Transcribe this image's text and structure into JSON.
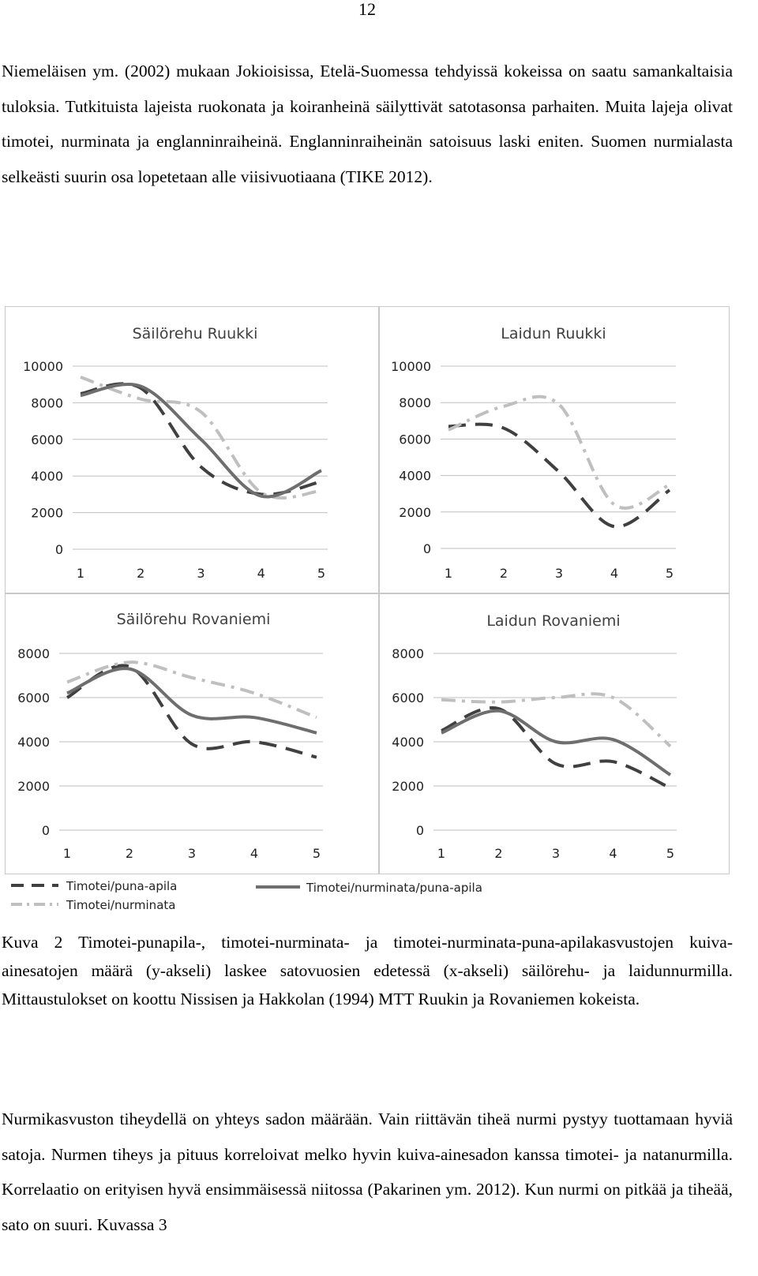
{
  "page_number": "12",
  "paragraph1": "Niemeläisen ym. (2002) mukaan Jokioisissa, Etelä-Suomessa tehdyissä kokeissa on saatu samankaltaisia tuloksia. Tutkituista lajeista ruokonata ja koiranheinä säilyttivät satotasonsa parhaiten. Muita lajeja olivat timotei, nurminata ja englanninraiheinä. Englanninraiheinän satoisuus laski eniten. Suomen nurmialasta selkeästi suurin osa lopetetaan alle viisivuotiaana (TIKE 2012).",
  "caption": "Kuva 2 Timotei-punapila-, timotei-nurminata- ja timotei-nurminata-puna-apilakasvustojen kuiva-ainesatojen määrä (y-akseli) laskee satovuosien edetessä (x-akseli) säilörehu- ja laidunnurmilla. Mittaustulokset on koottu Nissisen ja Hakkolan (1994) MTT Ruukin ja Rovaniemen kokeista.",
  "paragraph2": "Nurmikasvuston tiheydellä on yhteys sadon määrään. Vain riittävän tiheä nurmi pystyy tuottamaan hyviä satoja. Nurmen tiheys ja pituus korreloivat melko hyvin kuiva-ainesadon kanssa timotei- ja natanurmilla. Korrelaatio on erityisen hyvä ensimmäisessä niitossa (Pakarinen ym. 2012). Kun nurmi on pitkää ja tiheää, sato on suuri. Kuvassa 3",
  "legend": {
    "tpa": "Timotei/puna-apila",
    "tn": "Timotei/nurminata",
    "tnpa": "Timotei/nurminata/puna-apila"
  },
  "chart_data": [
    {
      "type": "line",
      "title": "Säilörehu Ruukki",
      "x": [
        1,
        2,
        3,
        4,
        5
      ],
      "ylim": [
        0,
        10000
      ],
      "yticks": [
        0,
        2000,
        4000,
        6000,
        8000,
        10000
      ],
      "series": [
        {
          "name": "Timotei/puna-apila",
          "values": [
            8500,
            8800,
            4500,
            3000,
            3700
          ],
          "style": "dashed",
          "color": "#404040"
        },
        {
          "name": "Timotei/nurminata",
          "values": [
            9400,
            8200,
            7500,
            3100,
            3200
          ],
          "style": "dashdot",
          "color": "#bfbfbf"
        },
        {
          "name": "Timotei/nurminata/puna-apila",
          "values": [
            8400,
            8900,
            6000,
            2900,
            4300
          ],
          "style": "solid",
          "color": "#6e6e6e"
        }
      ]
    },
    {
      "type": "line",
      "title": "Laidun Ruukki",
      "x": [
        1,
        2,
        3,
        4,
        5
      ],
      "ylim": [
        0,
        10000
      ],
      "yticks": [
        0,
        2000,
        4000,
        6000,
        8000,
        10000
      ],
      "series": [
        {
          "name": "Timotei/puna-apila",
          "values": [
            6700,
            6600,
            4200,
            1200,
            3200
          ],
          "style": "dashed",
          "color": "#404040"
        },
        {
          "name": "Timotei/nurminata",
          "values": [
            6500,
            7800,
            7900,
            2400,
            3500
          ],
          "style": "dashdot",
          "color": "#bfbfbf"
        },
        {
          "name": "Timotei/nurminata/puna-apila",
          "values": null,
          "style": "solid",
          "color": "#6e6e6e"
        }
      ]
    },
    {
      "type": "line",
      "title": "Säilörehu Rovaniemi",
      "x": [
        1,
        2,
        3,
        4,
        5
      ],
      "ylim": [
        0,
        8000
      ],
      "yticks": [
        0,
        2000,
        4000,
        6000,
        8000
      ],
      "series": [
        {
          "name": "Timotei/puna-apila",
          "values": [
            6000,
            7400,
            3900,
            4000,
            3300
          ],
          "style": "dashed",
          "color": "#404040"
        },
        {
          "name": "Timotei/nurminata",
          "values": [
            6700,
            7600,
            6900,
            6200,
            5100
          ],
          "style": "dashdot",
          "color": "#bfbfbf"
        },
        {
          "name": "Timotei/nurminata/puna-apila",
          "values": [
            6200,
            7300,
            5200,
            5100,
            4400
          ],
          "style": "solid",
          "color": "#6e6e6e"
        }
      ]
    },
    {
      "type": "line",
      "title": "Laidun Rovaniemi",
      "x": [
        1,
        2,
        3,
        4,
        5
      ],
      "ylim": [
        0,
        8000
      ],
      "yticks": [
        0,
        2000,
        4000,
        6000,
        8000
      ],
      "series": [
        {
          "name": "Timotei/puna-apila",
          "values": [
            4500,
            5500,
            3000,
            3100,
            1900
          ],
          "style": "dashed",
          "color": "#404040"
        },
        {
          "name": "Timotei/nurminata",
          "values": [
            5900,
            5800,
            6000,
            6000,
            3800
          ],
          "style": "dashdot",
          "color": "#bfbfbf"
        },
        {
          "name": "Timotei/nurminata/puna-apila",
          "values": [
            4400,
            5400,
            4000,
            4100,
            2500
          ],
          "style": "solid",
          "color": "#6e6e6e"
        }
      ]
    }
  ]
}
